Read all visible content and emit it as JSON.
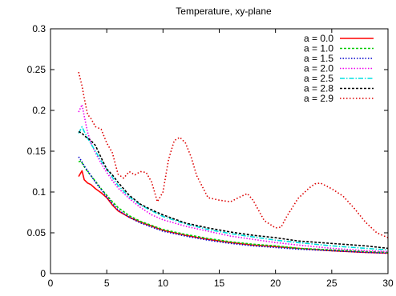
{
  "chart_data": {
    "type": "line",
    "title": "Temperature, xy-plane",
    "xlabel": "",
    "ylabel": "",
    "xlim": [
      0,
      30
    ],
    "ylim": [
      0,
      0.3
    ],
    "x_ticks": [
      "0",
      "5",
      "10",
      "15",
      "20",
      "25",
      "30"
    ],
    "y_ticks": [
      "0",
      "0.05",
      "0.1",
      "0.15",
      "0.2",
      "0.25",
      "0.3"
    ],
    "grid": false,
    "legend_position": "top-right",
    "series": [
      {
        "name": "a = 0.0",
        "color": "#ff0000",
        "dash": "solid",
        "x": [
          2.5,
          2.8,
          3.0,
          3.3,
          3.6,
          4.0,
          4.5,
          5.0,
          5.5,
          6.0,
          7.0,
          8.0,
          9.0,
          10.0,
          12.0,
          14.0,
          16.0,
          18.0,
          20.0,
          22.0,
          25.0,
          28.0,
          30.0
        ],
        "y": [
          0.119,
          0.126,
          0.115,
          0.111,
          0.109,
          0.104,
          0.099,
          0.093,
          0.084,
          0.077,
          0.069,
          0.063,
          0.058,
          0.053,
          0.047,
          0.042,
          0.038,
          0.035,
          0.033,
          0.031,
          0.028,
          0.026,
          0.025
        ]
      },
      {
        "name": "a = 1.0",
        "color": "#00cc00",
        "dash": "3,2",
        "x": [
          2.5,
          2.7,
          3.0,
          3.3,
          3.6,
          4.0,
          4.5,
          5.0,
          5.5,
          6.0,
          7.0,
          8.0,
          9.0,
          10.0,
          12.0,
          14.0,
          16.0,
          18.0,
          20.0,
          22.0,
          25.0,
          28.0,
          30.0
        ],
        "y": [
          0.137,
          0.138,
          0.131,
          0.125,
          0.12,
          0.113,
          0.104,
          0.096,
          0.088,
          0.081,
          0.071,
          0.064,
          0.059,
          0.054,
          0.048,
          0.043,
          0.039,
          0.036,
          0.034,
          0.031,
          0.029,
          0.027,
          0.026
        ]
      },
      {
        "name": "a = 1.5",
        "color": "#0000cc",
        "dash": "1.5,2",
        "x": [
          2.5,
          2.7,
          3.0,
          3.3,
          3.6,
          4.0,
          4.5,
          5.0,
          5.5,
          6.0,
          7.0,
          8.0,
          9.0,
          10.0,
          12.0,
          14.0,
          16.0,
          18.0,
          20.0,
          22.0,
          25.0,
          28.0,
          30.0
        ],
        "y": [
          0.143,
          0.139,
          0.132,
          0.126,
          0.12,
          0.112,
          0.103,
          0.094,
          0.086,
          0.078,
          0.069,
          0.062,
          0.057,
          0.052,
          0.046,
          0.041,
          0.037,
          0.034,
          0.032,
          0.03,
          0.028,
          0.026,
          0.025
        ]
      },
      {
        "name": "a = 2.0",
        "color": "#ee00ee",
        "dash": "1.5,2",
        "x": [
          2.5,
          2.8,
          3.0,
          3.3,
          3.6,
          4.0,
          4.5,
          5.0,
          5.5,
          6.0,
          7.0,
          8.0,
          9.0,
          10.0,
          12.0,
          14.0,
          16.0,
          18.0,
          20.0,
          22.0,
          25.0,
          28.0,
          30.0
        ],
        "y": [
          0.198,
          0.207,
          0.193,
          0.173,
          0.16,
          0.148,
          0.135,
          0.124,
          0.114,
          0.105,
          0.092,
          0.081,
          0.072,
          0.066,
          0.058,
          0.052,
          0.046,
          0.042,
          0.038,
          0.035,
          0.031,
          0.028,
          0.027
        ]
      },
      {
        "name": "a = 2.5",
        "color": "#00e0e0",
        "dash": "6,2,1.5,2",
        "x": [
          2.5,
          2.8,
          3.0,
          3.3,
          3.6,
          4.0,
          4.5,
          5.0,
          5.5,
          6.0,
          7.0,
          8.0,
          9.0,
          10.0,
          12.0,
          14.0,
          16.0,
          18.0,
          20.0,
          22.0,
          25.0,
          28.0,
          30.0
        ],
        "y": [
          0.172,
          0.18,
          0.174,
          0.166,
          0.159,
          0.15,
          0.138,
          0.128,
          0.118,
          0.108,
          0.094,
          0.084,
          0.077,
          0.07,
          0.061,
          0.054,
          0.049,
          0.045,
          0.041,
          0.038,
          0.034,
          0.031,
          0.029
        ]
      },
      {
        "name": "a = 2.8",
        "color": "#000000",
        "dash": "3,2",
        "x": [
          2.5,
          2.8,
          3.0,
          3.3,
          3.6,
          4.0,
          4.5,
          5.0,
          5.5,
          6.0,
          7.0,
          8.0,
          9.0,
          10.0,
          12.0,
          14.0,
          16.0,
          18.0,
          20.0,
          22.0,
          25.0,
          28.0,
          30.0
        ],
        "y": [
          0.174,
          0.172,
          0.169,
          0.166,
          0.163,
          0.157,
          0.142,
          0.128,
          0.121,
          0.112,
          0.096,
          0.085,
          0.078,
          0.072,
          0.062,
          0.056,
          0.051,
          0.047,
          0.044,
          0.04,
          0.037,
          0.034,
          0.031
        ]
      },
      {
        "name": "a = 2.9",
        "color": "#dd0000",
        "dash": "1.5,2.5",
        "x": [
          2.5,
          2.8,
          3.0,
          3.3,
          3.6,
          4.0,
          4.5,
          5.0,
          5.5,
          6.0,
          6.5,
          7.0,
          7.5,
          8.0,
          8.5,
          9.0,
          9.5,
          10.0,
          10.5,
          11.0,
          11.5,
          12.0,
          12.5,
          13.0,
          14.0,
          15.0,
          16.0,
          17.0,
          17.5,
          18.0,
          19.0,
          20.0,
          20.5,
          21.0,
          22.0,
          23.0,
          23.5,
          24.0,
          25.0,
          26.0,
          27.0,
          28.0,
          29.0,
          30.0
        ],
        "y": [
          0.247,
          0.23,
          0.215,
          0.195,
          0.19,
          0.18,
          0.177,
          0.16,
          0.148,
          0.122,
          0.117,
          0.125,
          0.121,
          0.125,
          0.124,
          0.112,
          0.088,
          0.1,
          0.14,
          0.163,
          0.167,
          0.16,
          0.143,
          0.12,
          0.093,
          0.09,
          0.088,
          0.095,
          0.098,
          0.09,
          0.065,
          0.056,
          0.057,
          0.07,
          0.092,
          0.105,
          0.11,
          0.111,
          0.104,
          0.095,
          0.08,
          0.063,
          0.05,
          0.044
        ]
      }
    ]
  }
}
